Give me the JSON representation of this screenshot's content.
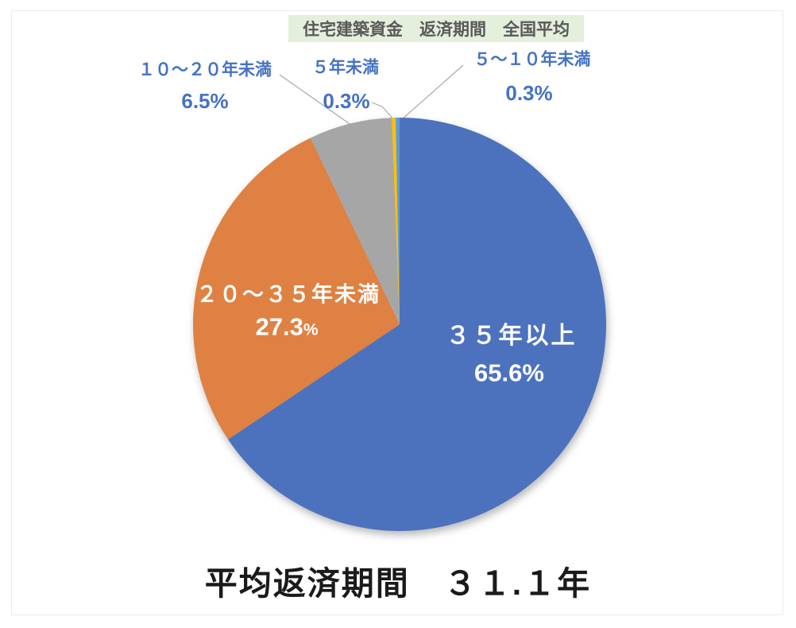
{
  "page": {
    "background": "#FFFFFF",
    "border_color": "#EBEBEB"
  },
  "header": {
    "title": "住宅建築資金　返済期間　全国平均",
    "bg_color": "#E4EFDC",
    "text_color": "#595959"
  },
  "chart_data": {
    "type": "pie",
    "title": "住宅建築資金　返済期間　全国平均",
    "direction": "clockwise",
    "start_angle_deg": 0,
    "legend": "none",
    "categories": [
      "35年以上",
      "20～35年未満",
      "10～20年未満",
      "5年未満",
      "5～10年未満"
    ],
    "values": [
      65.6,
      27.3,
      6.5,
      0.3,
      0.3
    ],
    "slices": [
      {
        "id": "35plus",
        "label": "３５年以上",
        "value": 65.6,
        "pct_num": "65.6",
        "pct_sign": "%",
        "pct_label": "65.6%",
        "color": "#4C72BE",
        "label_placement": "inside",
        "text_color": "#FFFFFF"
      },
      {
        "id": "20to35",
        "label": "２０～３５年未満",
        "value": 27.3,
        "pct_num": "27.3",
        "pct_sign": "%",
        "pct_label": "27.3%",
        "color": "#DF8142",
        "label_placement": "inside",
        "text_color": "#FFFFFF"
      },
      {
        "id": "10to20",
        "label": "１０～２０年未満",
        "value": 6.5,
        "pct_num": "6.5",
        "pct_sign": "%",
        "pct_label": "6.5%",
        "color": "#A6A6A6",
        "label_placement": "outside",
        "text_color": "#4472C4"
      },
      {
        "id": "under5",
        "label": "５年未満",
        "value": 0.3,
        "pct_num": "0.3",
        "pct_sign": "%",
        "pct_label": "0.3%",
        "color": "#FFC000",
        "label_placement": "outside",
        "text_color": "#4472C4"
      },
      {
        "id": "5to10",
        "label": "５～１０年未満",
        "value": 0.3,
        "pct_num": "0.3",
        "pct_sign": "%",
        "pct_label": "0.3%",
        "color": "#5B9BD5",
        "label_placement": "outside",
        "text_color": "#4472C4"
      }
    ],
    "footer": "平均返済期間　３１.１年"
  },
  "colors": {
    "outside_label": "#4472C4",
    "leader_line": "#A8A8A8",
    "footer_text": "#1A1A1A"
  }
}
